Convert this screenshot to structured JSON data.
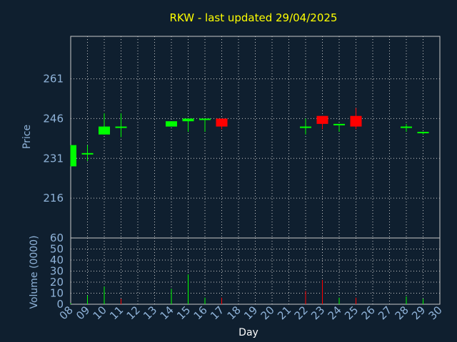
{
  "chart_data": [
    {
      "type": "candlestick",
      "title": "RKW - last updated 29/04/2025",
      "xlabel": "",
      "ylabel": "Price",
      "ylim": [
        201,
        277
      ],
      "yticks": [
        216,
        231,
        246,
        261
      ],
      "grid": true,
      "up_color": "#00ff00",
      "down_color": "#ff0000",
      "candles": [
        {
          "day": 8,
          "open": 228,
          "high": 236,
          "low": 228,
          "close": 236
        },
        {
          "day": 9,
          "open": 233,
          "high": 236,
          "low": 230,
          "close": 233
        },
        {
          "day": 10,
          "open": 240,
          "high": 248,
          "low": 240,
          "close": 243
        },
        {
          "day": 11,
          "open": 243,
          "high": 248,
          "low": 239,
          "close": 243
        },
        {
          "day": 14,
          "open": 243,
          "high": 245,
          "low": 243,
          "close": 245
        },
        {
          "day": 15,
          "open": 245,
          "high": 246,
          "low": 241,
          "close": 246
        },
        {
          "day": 16,
          "open": 246,
          "high": 246,
          "low": 241,
          "close": 246
        },
        {
          "day": 17,
          "open": 246,
          "high": 246,
          "low": 242,
          "close": 243
        },
        {
          "day": 22,
          "open": 243,
          "high": 246,
          "low": 240,
          "close": 243
        },
        {
          "day": 23,
          "open": 247,
          "high": 247,
          "low": 242,
          "close": 244
        },
        {
          "day": 24,
          "open": 244,
          "high": 244,
          "low": 241,
          "close": 244
        },
        {
          "day": 25,
          "open": 247,
          "high": 250,
          "low": 242,
          "close": 243
        },
        {
          "day": 28,
          "open": 243,
          "high": 244,
          "low": 241,
          "close": 243
        },
        {
          "day": 29,
          "open": 241,
          "high": 241,
          "low": 240,
          "close": 241
        }
      ]
    },
    {
      "type": "bar",
      "xlabel": "Day",
      "ylabel": "Volume (0000)",
      "ylim": [
        0,
        60
      ],
      "yticks": [
        0,
        10,
        20,
        30,
        40,
        50,
        60
      ],
      "grid": true,
      "categories": [
        "08",
        "09",
        "10",
        "11",
        "12",
        "13",
        "14",
        "15",
        "16",
        "17",
        "18",
        "19",
        "20",
        "21",
        "22",
        "23",
        "24",
        "25",
        "26",
        "27",
        "28",
        "29",
        "30"
      ],
      "volumes": [
        {
          "day": 8,
          "value": 1,
          "direction": "up"
        },
        {
          "day": 9,
          "value": 8,
          "direction": "up"
        },
        {
          "day": 10,
          "value": 16,
          "direction": "up"
        },
        {
          "day": 11,
          "value": 5,
          "direction": "down"
        },
        {
          "day": 14,
          "value": 14,
          "direction": "up"
        },
        {
          "day": 15,
          "value": 27,
          "direction": "up"
        },
        {
          "day": 16,
          "value": 6,
          "direction": "up"
        },
        {
          "day": 17,
          "value": 6,
          "direction": "down"
        },
        {
          "day": 22,
          "value": 12,
          "direction": "down"
        },
        {
          "day": 23,
          "value": 22,
          "direction": "down"
        },
        {
          "day": 24,
          "value": 6,
          "direction": "up"
        },
        {
          "day": 25,
          "value": 6,
          "direction": "down"
        },
        {
          "day": 28,
          "value": 7,
          "direction": "up"
        },
        {
          "day": 29,
          "value": 5,
          "direction": "up"
        }
      ]
    }
  ]
}
